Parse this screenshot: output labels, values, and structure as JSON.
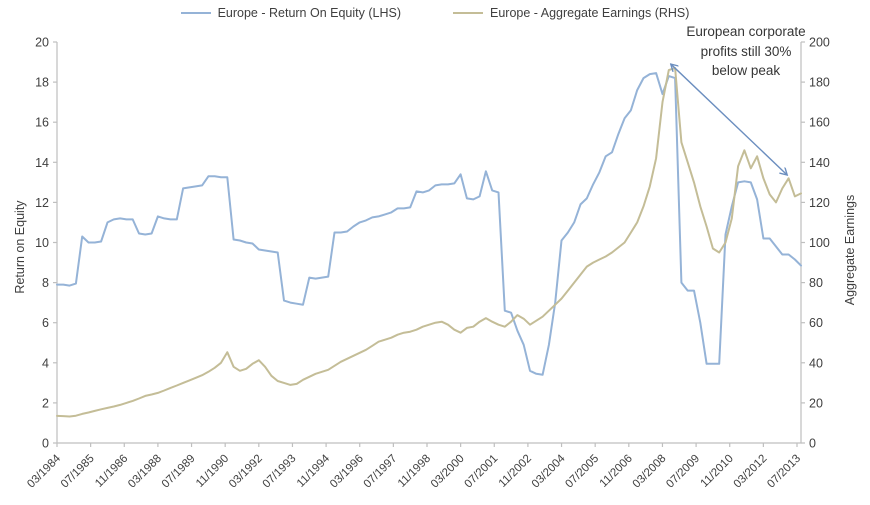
{
  "chart": {
    "legend": [
      {
        "label": "Europe - Return On Equity (LHS)",
        "color": "#95B3D7"
      },
      {
        "label": "Europe - Aggregate Earnings (RHS)",
        "color": "#C4BD97"
      }
    ],
    "left_axis": {
      "title": "Return on Equity",
      "min": 0,
      "max": 20,
      "step": 2
    },
    "right_axis": {
      "title": "Aggregate Earnings",
      "min": 0,
      "max": 200,
      "step": 20
    },
    "x_axis": {
      "tick_labels": [
        "03/1984",
        "07/1985",
        "11/1986",
        "03/1988",
        "07/1989",
        "11/1990",
        "03/1992",
        "07/1993",
        "11/1994",
        "03/1996",
        "07/1997",
        "11/1998",
        "03/2000",
        "07/2001",
        "11/2002",
        "03/2004",
        "07/2005",
        "11/2006",
        "03/2008",
        "07/2009",
        "11/2010",
        "03/2012",
        "07/2013"
      ],
      "months_per_tick": 16
    },
    "annotation": {
      "text": "European corporate profits still 30% below peak",
      "arrow_color": "#6B8EBF",
      "arrow_from": {
        "month": 291,
        "right_value": 188
      },
      "arrow_to": {
        "month": 347,
        "right_value": 134
      }
    },
    "colors": {
      "axis_line": "#BFBFBF",
      "tick_text": "#404040",
      "background": "#FFFFFF"
    }
  },
  "chart_data": {
    "type": "line",
    "title": "",
    "xlabel": "",
    "ylabel_left": "Return on Equity",
    "ylabel_right": "Aggregate Earnings",
    "x_start_month": "1984-03",
    "x_step_months": 3,
    "n_points": 119,
    "left_ylim": [
      0,
      20
    ],
    "right_ylim": [
      0,
      200
    ],
    "grid": false,
    "legend_position": "top-center",
    "series": [
      {
        "name": "Europe - Return On Equity (LHS)",
        "axis": "left",
        "color": "#95B3D7",
        "values": [
          7.9,
          7.9,
          7.85,
          7.95,
          10.3,
          10.0,
          10.0,
          10.05,
          11.0,
          11.15,
          11.2,
          11.15,
          11.15,
          10.45,
          10.4,
          10.45,
          11.3,
          11.2,
          11.15,
          11.15,
          12.7,
          12.75,
          12.8,
          12.85,
          13.3,
          13.3,
          13.25,
          13.25,
          10.15,
          10.1,
          10.0,
          9.95,
          9.65,
          9.6,
          9.55,
          9.5,
          7.1,
          7.0,
          6.95,
          6.9,
          8.25,
          8.2,
          8.25,
          8.3,
          10.5,
          10.5,
          10.55,
          10.8,
          11.0,
          11.1,
          11.25,
          11.3,
          11.4,
          11.5,
          11.7,
          11.7,
          11.75,
          12.55,
          12.5,
          12.6,
          12.85,
          12.9,
          12.9,
          12.95,
          13.4,
          12.2,
          12.15,
          12.3,
          13.55,
          12.6,
          12.5,
          6.6,
          6.5,
          5.6,
          4.9,
          3.6,
          3.45,
          3.4,
          4.9,
          7.0,
          10.1,
          10.5,
          11.0,
          11.9,
          12.2,
          12.9,
          13.5,
          14.3,
          14.5,
          15.4,
          16.2,
          16.6,
          17.6,
          18.2,
          18.4,
          18.45,
          17.4,
          18.3,
          18.2,
          8.0,
          7.6,
          7.6,
          6.0,
          3.95,
          3.95,
          3.95,
          10.4,
          11.8,
          13.0,
          13.05,
          13.0,
          12.15,
          10.2,
          10.2,
          9.8,
          9.4,
          9.4,
          9.15,
          8.85
        ]
      },
      {
        "name": "Europe - Aggregate Earnings (RHS)",
        "axis": "right",
        "color": "#C4BD97",
        "values": [
          13.5,
          13.4,
          13.2,
          13.6,
          14.5,
          15.2,
          16.0,
          16.8,
          17.5,
          18.2,
          19.0,
          20.0,
          21.0,
          22.2,
          23.5,
          24.2,
          25.0,
          26.2,
          27.5,
          28.7,
          30.0,
          31.2,
          32.5,
          33.8,
          35.5,
          37.5,
          40.0,
          45.3,
          38.0,
          36.0,
          37.0,
          39.5,
          41.3,
          38.0,
          33.5,
          30.9,
          30.0,
          29.0,
          29.5,
          31.5,
          33.0,
          34.5,
          35.5,
          36.5,
          38.5,
          40.5,
          42.0,
          43.5,
          45.0,
          46.5,
          48.5,
          50.5,
          51.5,
          52.5,
          54.0,
          55.0,
          55.5,
          56.5,
          58.0,
          59.0,
          60.0,
          60.5,
          59.0,
          56.5,
          55.0,
          57.4,
          58.0,
          60.5,
          62.3,
          60.5,
          59.0,
          58.0,
          60.5,
          63.8,
          62.0,
          59.0,
          61.0,
          63.0,
          66.0,
          69.0,
          72.0,
          76.0,
          80.0,
          84.0,
          88.0,
          90.0,
          91.5,
          93.0,
          95.0,
          97.5,
          100.0,
          105.0,
          110.0,
          118.0,
          128.0,
          142.0,
          170.0,
          186.0,
          187.0,
          150.0,
          140.0,
          130.0,
          118.0,
          108.0,
          97.0,
          95.0,
          100.0,
          112.0,
          138.0,
          146.0,
          137.0,
          143.0,
          132.0,
          124.0,
          120.0,
          127.0,
          132.0,
          123.0,
          124.5
        ]
      }
    ]
  }
}
